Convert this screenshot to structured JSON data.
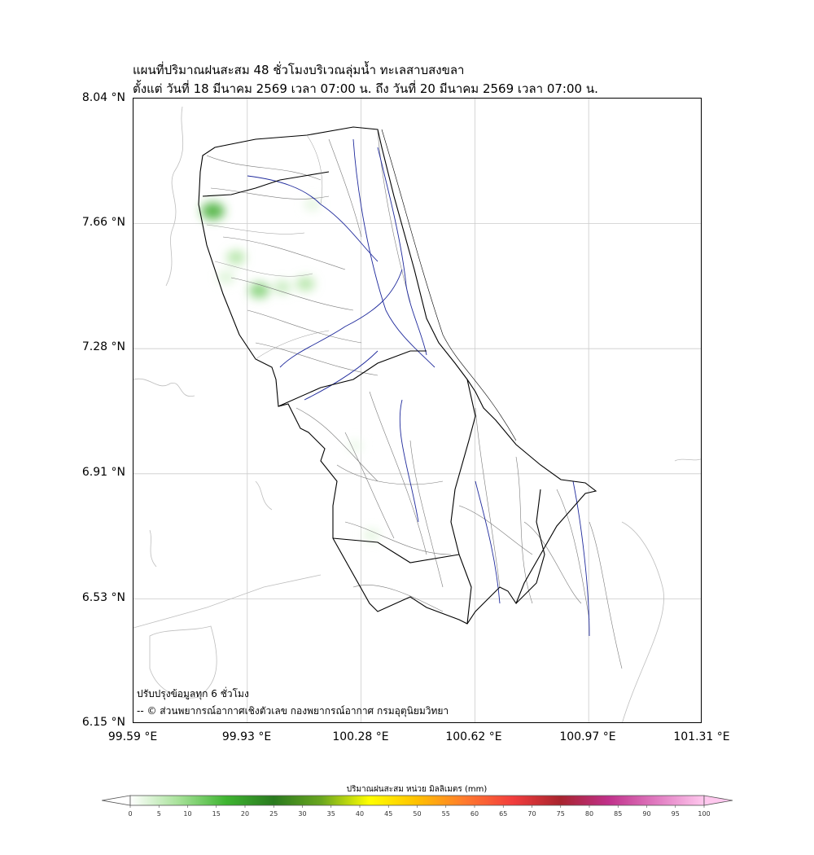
{
  "title": {
    "line1": "แผนที่ปริมาณฝนสะสม 48 ชั่วโมงบริเวณลุ่มน้ำ ทะเลสาบสงขลา",
    "line2": "ตั้งแต่ วันที่ 18 มีนาคม 2569 เวลา 07:00 น. ถึง วันที่ 20 มีนาคม 2569 เวลา 07:00 น."
  },
  "axes": {
    "lat_ticks": [
      "8.04 °N",
      "7.66 °N",
      "7.28 °N",
      "6.91 °N",
      "6.53 °N",
      "6.15 °N"
    ],
    "lon_ticks": [
      "99.59 °E",
      "99.93 °E",
      "100.28 °E",
      "100.62 °E",
      "100.97 °E",
      "101.31 °E"
    ],
    "lat_range": [
      6.15,
      8.04
    ],
    "lon_range": [
      99.59,
      101.31
    ],
    "grid": true
  },
  "notes": {
    "update": "ปรับปรุงข้อมูลทุก 6 ชั่วโมง",
    "credit": "-- © ส่วนพยากรณ์อากาศเชิงตัวเลข กองพยากรณ์อากาศ กรมอุตุนิยมวิทยา"
  },
  "colorbar": {
    "label": "ปริมาณฝนสะสม หน่วย มิลลิเมตร (mm)",
    "ticks": [
      "0",
      "5",
      "10",
      "15",
      "20",
      "25",
      "30",
      "35",
      "40",
      "45",
      "50",
      "55",
      "60",
      "65",
      "70",
      "75",
      "80",
      "85",
      "90",
      "95",
      "100"
    ],
    "stops": [
      "#ffffff",
      "#a8e29a",
      "#3fb531",
      "#2a7a1f",
      "#6aa61f",
      "#ffff00",
      "#ffc000",
      "#ff7a2e",
      "#f23d3d",
      "#a8242e",
      "#c0308a",
      "#e07ac0",
      "#ffc8ee"
    ]
  },
  "colors": {
    "basin_outline": "#000000",
    "river_major": "#1f2a9c",
    "river_minor": "#777777",
    "gridline": "#cccccc"
  },
  "rain_spots": [
    {
      "lon": 99.83,
      "lat": 7.7,
      "mm": 18
    },
    {
      "lon": 99.9,
      "lat": 7.56,
      "mm": 8
    },
    {
      "lon": 99.97,
      "lat": 7.46,
      "mm": 12
    },
    {
      "lon": 100.04,
      "lat": 7.47,
      "mm": 6
    },
    {
      "lon": 100.11,
      "lat": 7.48,
      "mm": 8
    },
    {
      "lon": 100.13,
      "lat": 7.72,
      "mm": 3
    },
    {
      "lon": 99.87,
      "lat": 7.5,
      "mm": 4
    },
    {
      "lon": 100.31,
      "lat": 6.72,
      "mm": 3
    },
    {
      "lon": 100.26,
      "lat": 6.99,
      "mm": 2
    }
  ]
}
